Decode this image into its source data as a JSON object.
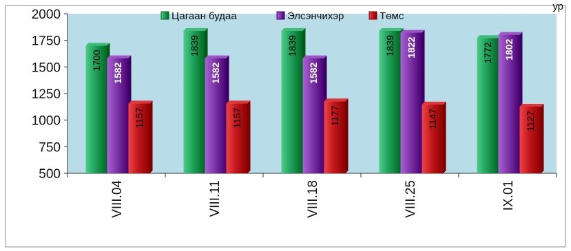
{
  "chart_data": {
    "type": "bar",
    "title": "",
    "xlabel": "",
    "ylabel": "",
    "ylim": [
      500,
      2000
    ],
    "yticks": [
      500,
      750,
      1000,
      1250,
      1500,
      1750,
      2000
    ],
    "grid": false,
    "legend": "top",
    "categories": [
      "VIII.04",
      "VIII.11",
      "VIII.18",
      "VIII.25",
      "IX.01"
    ],
    "series": [
      {
        "name": "Цагаан будаа",
        "color": "#1fa05a",
        "label_color": "#000000",
        "label_bold": false,
        "values": [
          1700,
          1839,
          1839,
          1839,
          1772
        ]
      },
      {
        "name": "Элсэнчихэр",
        "color": "#7e35a8",
        "label_color": "#ffffff",
        "label_bold": true,
        "values": [
          1582,
          1582,
          1582,
          1822,
          1802
        ]
      },
      {
        "name": "Төмс",
        "color": "#c2181c",
        "label_color": "#000000",
        "label_bold": false,
        "values": [
          1157,
          1157,
          1177,
          1147,
          1127
        ]
      }
    ],
    "plot_background": "#b8dde8",
    "top_right_fragment": "ур"
  }
}
